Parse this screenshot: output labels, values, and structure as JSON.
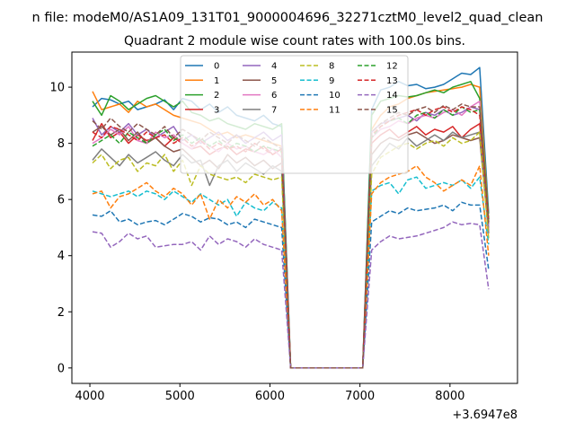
{
  "chart_data": {
    "type": "line",
    "suptitle": "n file: modeM0/AS1A09_131T01_9000004696_32271cztM0_level2_quad_clean",
    "title": "Quadrant 2 module wise count rates with 100.0s bins.",
    "xlabel": "",
    "ylabel": "",
    "x_offset_label": "+3.6947e8",
    "xlim": [
      3800,
      8750
    ],
    "ylim": [
      -0.55,
      11.25
    ],
    "x_ticks": [
      4000,
      5000,
      6000,
      7000,
      8000
    ],
    "x_tick_labels": [
      "4000",
      "5000",
      "6000",
      "7000",
      "8000"
    ],
    "y_ticks": [
      0,
      2,
      4,
      6,
      8,
      10
    ],
    "y_tick_labels": [
      "0",
      "2",
      "4",
      "6",
      "8",
      "10"
    ],
    "grid": false,
    "legend": {
      "placement": "top-center",
      "columns": 4
    },
    "x_note": "x in seconds relative to offset; 100 s bins; 4030-6130 and 7130-8530, gap at ~0 from 6230 to 7030",
    "series": [
      {
        "name": "0",
        "color": "#1f77b4",
        "dash": "solid",
        "values": [
          9.3,
          9.6,
          9.55,
          9.4,
          9.5,
          9.2,
          9.3,
          9.4,
          9.55,
          9.2,
          9.6,
          9.5,
          9.2,
          9.4,
          9.1,
          9.3,
          9.0,
          8.9,
          8.8,
          9.0,
          8.7,
          8.6,
          9.2,
          9.9,
          10.0,
          10.2,
          10.05,
          10.1,
          9.95,
          10.0,
          10.1,
          10.3,
          10.5,
          10.45,
          10.7,
          5.5
        ]
      },
      {
        "name": "1",
        "color": "#ff7f0e",
        "dash": "solid",
        "values": [
          9.85,
          9.2,
          9.3,
          9.4,
          9.1,
          9.5,
          9.3,
          9.4,
          9.2,
          9.0,
          8.9,
          8.8,
          8.7,
          8.5,
          8.3,
          8.4,
          8.2,
          8.3,
          8.2,
          8.1,
          8.0,
          7.9,
          8.5,
          9.0,
          9.3,
          9.4,
          9.6,
          9.7,
          9.8,
          9.85,
          9.9,
          9.95,
          10.0,
          10.1,
          10.0,
          5.3
        ]
      },
      {
        "name": "2",
        "color": "#2ca02c",
        "dash": "solid",
        "values": [
          9.5,
          9.0,
          9.7,
          9.5,
          9.2,
          9.4,
          9.6,
          9.7,
          9.5,
          9.3,
          9.5,
          9.1,
          9.0,
          8.8,
          8.9,
          8.7,
          8.6,
          8.5,
          8.7,
          8.6,
          8.5,
          8.7,
          9.0,
          9.5,
          9.6,
          9.7,
          9.65,
          9.7,
          9.8,
          9.9,
          9.8,
          10.0,
          10.1,
          10.2,
          9.6,
          5.2
        ]
      },
      {
        "name": "3",
        "color": "#d62728",
        "dash": "solid",
        "values": [
          8.1,
          8.7,
          8.2,
          8.4,
          8.0,
          8.3,
          8.1,
          8.2,
          7.9,
          8.2,
          8.0,
          7.8,
          7.9,
          7.6,
          7.8,
          7.9,
          7.6,
          7.8,
          7.7,
          7.9,
          7.6,
          7.8,
          8.0,
          8.3,
          8.5,
          8.2,
          8.4,
          8.6,
          8.3,
          8.5,
          8.4,
          8.6,
          8.2,
          8.5,
          8.7,
          5.0
        ]
      },
      {
        "name": "4",
        "color": "#9467bd",
        "dash": "solid",
        "values": [
          8.9,
          8.3,
          8.6,
          8.4,
          8.7,
          8.3,
          8.5,
          8.2,
          8.4,
          8.6,
          8.1,
          8.3,
          8.0,
          8.2,
          8.4,
          8.1,
          8.3,
          8.0,
          8.2,
          8.4,
          8.1,
          8.3,
          8.4,
          8.7,
          8.8,
          8.9,
          9.0,
          8.8,
          9.1,
          9.0,
          9.2,
          9.0,
          9.1,
          9.3,
          9.2,
          5.0
        ]
      },
      {
        "name": "5",
        "color": "#8c564b",
        "dash": "solid",
        "values": [
          8.4,
          8.6,
          8.3,
          8.5,
          8.1,
          8.4,
          8.0,
          8.2,
          7.9,
          7.7,
          7.8,
          7.5,
          7.2,
          7.4,
          7.1,
          7.6,
          7.3,
          7.5,
          7.2,
          7.4,
          7.1,
          7.3,
          7.6,
          8.0,
          8.2,
          8.1,
          8.3,
          8.4,
          8.2,
          8.0,
          8.1,
          8.3,
          8.2,
          8.1,
          8.2,
          4.8
        ]
      },
      {
        "name": "6",
        "color": "#e377c2",
        "dash": "solid",
        "values": [
          8.0,
          8.2,
          8.5,
          8.3,
          8.6,
          8.1,
          8.0,
          8.4,
          8.2,
          8.3,
          8.0,
          7.8,
          8.1,
          7.9,
          7.7,
          8.0,
          7.8,
          7.9,
          7.7,
          7.6,
          7.8,
          7.5,
          8.2,
          8.5,
          8.6,
          8.8,
          8.7,
          8.9,
          9.0,
          8.9,
          9.1,
          9.2,
          9.0,
          9.3,
          9.5,
          4.9
        ]
      },
      {
        "name": "7",
        "color": "#7f7f7f",
        "dash": "solid",
        "values": [
          7.4,
          7.8,
          7.5,
          7.2,
          7.6,
          7.3,
          7.5,
          7.7,
          7.4,
          7.2,
          7.6,
          7.3,
          7.4,
          6.5,
          7.2,
          7.4,
          7.0,
          7.3,
          7.1,
          6.9,
          7.2,
          7.0,
          7.2,
          7.6,
          8.0,
          7.8,
          8.2,
          7.9,
          8.1,
          8.3,
          8.1,
          8.4,
          8.2,
          8.3,
          8.4,
          4.8
        ]
      },
      {
        "name": "8",
        "color": "#bcbd22",
        "dash": "dashed",
        "values": [
          7.3,
          7.6,
          7.1,
          7.4,
          7.5,
          7.0,
          7.3,
          7.2,
          7.6,
          7.0,
          7.4,
          6.5,
          7.2,
          6.9,
          6.8,
          6.7,
          6.8,
          6.6,
          6.9,
          6.8,
          6.7,
          6.8,
          6.9,
          7.5,
          7.7,
          7.9,
          8.0,
          7.8,
          8.0,
          8.1,
          7.9,
          8.2,
          8.0,
          8.1,
          8.4,
          4.6
        ]
      },
      {
        "name": "9",
        "color": "#17becf",
        "dash": "dashed",
        "values": [
          6.3,
          6.2,
          6.1,
          6.2,
          6.3,
          6.1,
          6.3,
          6.2,
          6.0,
          6.3,
          6.1,
          5.9,
          6.2,
          6.0,
          5.8,
          6.0,
          5.4,
          5.9,
          5.7,
          5.6,
          5.9,
          5.7,
          6.3,
          6.5,
          6.6,
          6.2,
          6.7,
          6.8,
          6.4,
          6.5,
          6.6,
          6.5,
          6.7,
          6.4,
          6.8,
          4.4
        ]
      },
      {
        "name": "10",
        "color": "#1f77b4",
        "dash": "dashed",
        "values": [
          5.45,
          5.4,
          5.6,
          5.2,
          5.3,
          5.1,
          5.2,
          5.25,
          5.1,
          5.3,
          5.5,
          5.4,
          5.2,
          5.35,
          5.3,
          5.1,
          5.2,
          5.0,
          5.3,
          5.2,
          5.1,
          5.0,
          5.2,
          5.4,
          5.6,
          5.5,
          5.7,
          5.6,
          5.65,
          5.7,
          5.8,
          5.6,
          5.9,
          5.8,
          5.8,
          3.5
        ]
      },
      {
        "name": "11",
        "color": "#ff7f0e",
        "dash": "dashed",
        "values": [
          6.2,
          6.3,
          5.7,
          6.1,
          6.2,
          6.4,
          6.6,
          6.3,
          6.1,
          6.4,
          6.2,
          5.8,
          6.2,
          5.3,
          6.0,
          5.7,
          6.1,
          5.9,
          6.2,
          5.8,
          6.0,
          5.6,
          6.2,
          6.6,
          6.8,
          6.9,
          7.0,
          7.2,
          6.8,
          6.6,
          6.3,
          6.5,
          6.7,
          6.5,
          7.2,
          4.0
        ]
      },
      {
        "name": "12",
        "color": "#2ca02c",
        "dash": "dashed",
        "values": [
          7.9,
          8.1,
          8.3,
          8.0,
          8.4,
          8.2,
          8.0,
          8.3,
          8.5,
          8.1,
          8.3,
          8.0,
          8.2,
          7.9,
          8.1,
          7.8,
          8.0,
          7.9,
          7.7,
          7.9,
          7.8,
          7.7,
          8.2,
          8.6,
          8.8,
          8.9,
          8.7,
          9.0,
          9.1,
          8.9,
          9.2,
          9.0,
          9.3,
          9.1,
          9.2,
          5.3
        ]
      },
      {
        "name": "13",
        "color": "#d62728",
        "dash": "dashed",
        "values": [
          8.4,
          8.2,
          8.6,
          8.5,
          8.3,
          8.1,
          8.4,
          8.2,
          8.3,
          8.0,
          8.2,
          7.9,
          8.1,
          7.8,
          8.0,
          7.8,
          7.9,
          7.7,
          8.0,
          7.8,
          7.6,
          7.8,
          8.3,
          8.6,
          8.8,
          9.0,
          9.1,
          9.2,
          9.0,
          9.2,
          9.3,
          9.1,
          9.3,
          9.2,
          9.0,
          5.2
        ]
      },
      {
        "name": "14",
        "color": "#9467bd",
        "dash": "dashed",
        "values": [
          4.85,
          4.8,
          4.3,
          4.5,
          4.8,
          4.6,
          4.7,
          4.3,
          4.35,
          4.4,
          4.4,
          4.5,
          4.2,
          4.7,
          4.4,
          4.6,
          4.5,
          4.3,
          4.6,
          4.4,
          4.3,
          4.2,
          4.2,
          4.5,
          4.7,
          4.6,
          4.65,
          4.7,
          4.8,
          4.9,
          5.0,
          5.2,
          5.1,
          5.15,
          5.1,
          2.8
        ]
      },
      {
        "name": "15",
        "color": "#8c564b",
        "dash": "dashed",
        "values": [
          8.8,
          8.5,
          8.9,
          8.6,
          8.4,
          8.7,
          8.5,
          8.3,
          8.6,
          8.2,
          8.5,
          8.3,
          8.1,
          8.4,
          8.2,
          8.0,
          8.3,
          8.1,
          7.9,
          8.2,
          8.0,
          7.8,
          8.4,
          8.7,
          8.9,
          9.1,
          9.0,
          9.2,
          9.3,
          9.1,
          9.35,
          9.2,
          9.4,
          9.3,
          9.3,
          5.1
        ]
      }
    ]
  }
}
